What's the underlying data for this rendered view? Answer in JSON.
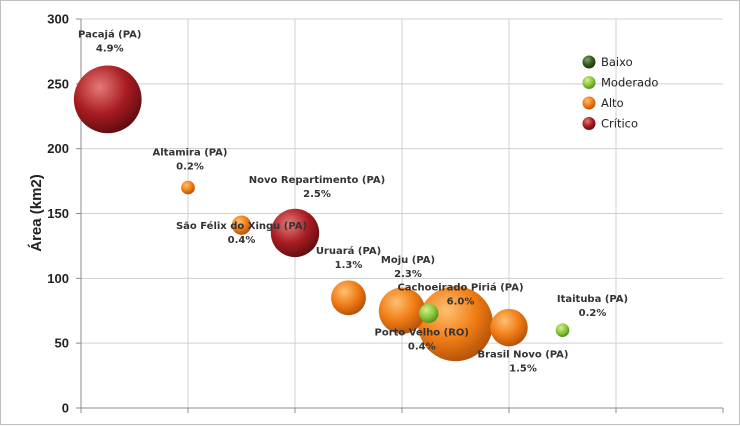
{
  "chart_data": {
    "type": "bubble",
    "title": "",
    "xlabel": "",
    "ylabel": "Área (km2)",
    "ylim": [
      0,
      300
    ],
    "yticks": [
      "0",
      "50",
      "100",
      "150",
      "200",
      "250",
      "300"
    ],
    "xlim": [
      0,
      12
    ],
    "grid": true,
    "legend_position": "top-right",
    "legend": [
      {
        "name": "Baixo",
        "color": "#2f5a1d"
      },
      {
        "name": "Moderado",
        "color": "#8cc63f"
      },
      {
        "name": "Alto",
        "color": "#f07c14"
      },
      {
        "name": "Crítico",
        "color": "#a81c22"
      }
    ],
    "points": [
      {
        "name": "Pacajá (PA)",
        "pct": "4.9%",
        "x": 0.5,
        "y": 238,
        "size": 4.9,
        "level": "Crítico"
      },
      {
        "name": "Altamira (PA)",
        "pct": "0.2%",
        "x": 2.0,
        "y": 170,
        "size": 0.2,
        "level": "Alto"
      },
      {
        "name": "São Félix do Xingu (PA)",
        "pct": "0.4%",
        "x": 3.0,
        "y": 141,
        "size": 0.4,
        "level": "Alto"
      },
      {
        "name": "Novo Repartimento (PA)",
        "pct": "2.5%",
        "x": 4.0,
        "y": 135,
        "size": 2.5,
        "level": "Crítico"
      },
      {
        "name": "Uruará (PA)",
        "pct": "1.3%",
        "x": 5.0,
        "y": 85,
        "size": 1.3,
        "level": "Alto"
      },
      {
        "name": "Moju (PA)",
        "pct": "2.3%",
        "x": 6.0,
        "y": 75,
        "size": 2.3,
        "level": "Alto"
      },
      {
        "name": "Porto Velho (RO)",
        "pct": "0.4%",
        "x": 6.5,
        "y": 73,
        "size": 0.4,
        "level": "Moderado"
      },
      {
        "name": "Cachoeirado Piriá (PA)",
        "pct": "6.0%",
        "x": 7.0,
        "y": 65,
        "size": 6.0,
        "level": "Alto"
      },
      {
        "name": "Brasil Novo (PA)",
        "pct": "1.5%",
        "x": 8.0,
        "y": 62,
        "size": 1.5,
        "level": "Alto"
      },
      {
        "name": "Itaituba (PA)",
        "pct": "0.2%",
        "x": 9.0,
        "y": 60,
        "size": 0.2,
        "level": "Moderado"
      }
    ]
  }
}
